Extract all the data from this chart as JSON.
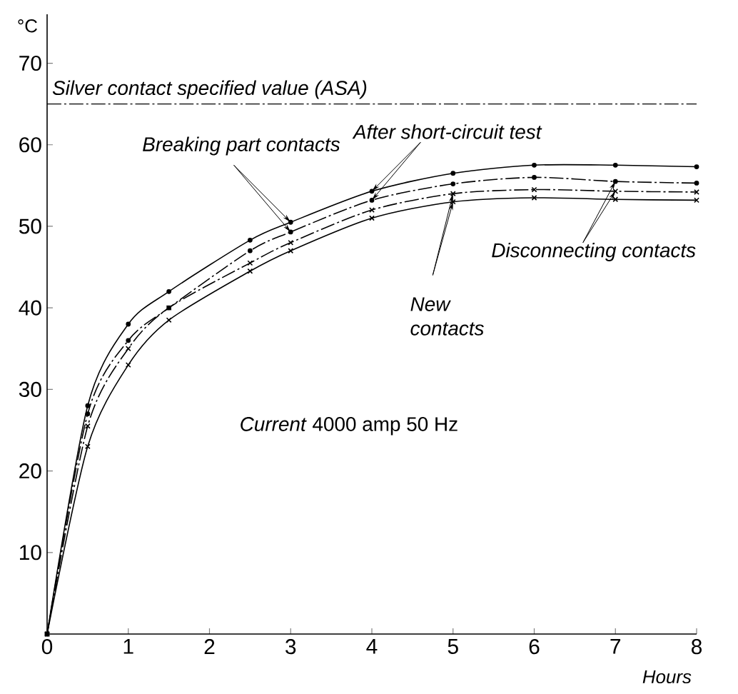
{
  "chart_data": {
    "type": "line",
    "xlabel": "Hours",
    "ylabel": "°C",
    "x": [
      0,
      0.5,
      1,
      1.5,
      2.5,
      3,
      4,
      5,
      6,
      7,
      8
    ],
    "series": [
      {
        "color": "#000000",
        "line_style": "solid",
        "marker": "circle",
        "values": [
          0,
          28,
          38,
          42,
          48.3,
          50.5,
          54.3,
          56.5,
          57.5,
          57.5,
          57.3
        ]
      },
      {
        "color": "#000000",
        "line_style": "dashed",
        "marker": "circle",
        "values": [
          0,
          27,
          36,
          40,
          47,
          49.3,
          53.2,
          55.2,
          56,
          55.5,
          55.3
        ]
      },
      {
        "color": "#000000",
        "line_style": "dashed",
        "marker": "cross",
        "values": [
          0,
          25.5,
          35,
          40,
          45.5,
          48,
          52,
          54,
          54.5,
          54.3,
          54.2
        ]
      },
      {
        "color": "#000000",
        "line_style": "solid",
        "marker": "cross",
        "values": [
          0,
          23,
          33,
          38.5,
          44.5,
          47,
          51,
          53,
          53.5,
          53.3,
          53.2
        ]
      }
    ],
    "xlim": [
      0,
      8
    ],
    "ylim": [
      0,
      76
    ],
    "xticks": [
      0,
      1,
      2,
      3,
      4,
      5,
      6,
      7,
      8
    ],
    "yticks": [
      10,
      20,
      30,
      40,
      50,
      60,
      70
    ],
    "ref_lines": [
      {
        "axis": "y",
        "value": 65,
        "label": "*Silver contact specified value* (ASA)",
        "line_style": "dashed",
        "color": "#000000"
      }
    ],
    "annotations": [
      {
        "text": "Breaking part contacts",
        "x": 3,
        "y": 49.3
      },
      {
        "text": "After short-circuit test",
        "x": 4,
        "y": 54.3
      },
      {
        "text": "New contacts",
        "x": 5,
        "y": 53
      },
      {
        "text": "Disconnecting contacts",
        "x": 7,
        "y": 55.5
      },
      "*Current* 4000 amp 50 Hz"
    ]
  }
}
